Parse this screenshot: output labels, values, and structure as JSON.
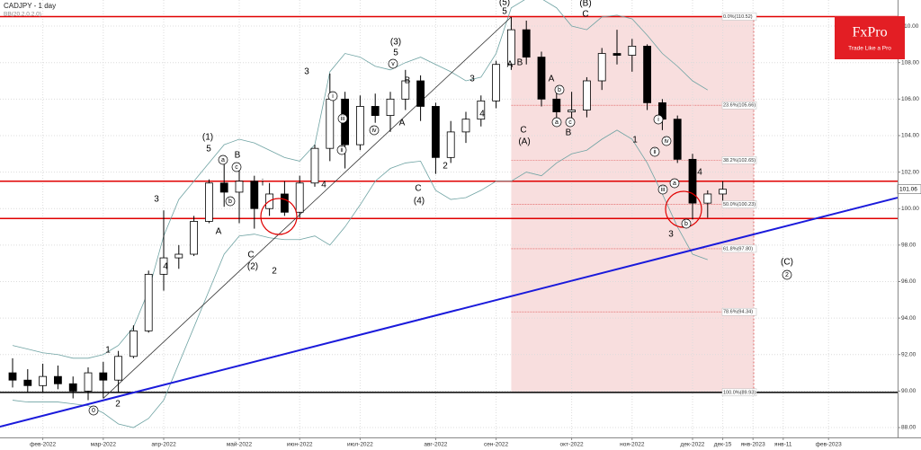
{
  "chart_data": {
    "type": "candlestick",
    "title": "CADJPY - 1 day",
    "indicator_label": "BB(20,2.0,2.0)",
    "brand": {
      "name": "FxPro",
      "tagline": "Trade Like a Pro",
      "color": "#e31e24"
    },
    "categories": [
      null,
      null,
      "фев-2022",
      null,
      null,
      null,
      "мар-2022",
      null,
      null,
      null,
      "апр-2022",
      null,
      null,
      null,
      null,
      "май-2022",
      null,
      null,
      null,
      "июн-2022",
      null,
      null,
      null,
      "июл-2022",
      null,
      null,
      null,
      null,
      "авг-2022",
      null,
      null,
      null,
      "сен-2022",
      null,
      null,
      null,
      null,
      "окт-2022",
      null,
      null,
      null,
      "ноя-2022",
      null,
      null,
      null,
      "дек-2022",
      null,
      "дек-15",
      null,
      "янв-2023",
      null,
      "янв-11",
      null,
      null,
      "фев-2023",
      null
    ],
    "open": [
      91.0,
      90.6,
      90.3,
      90.8,
      90.4,
      90.0,
      91.0,
      90.6,
      91.9,
      93.3,
      96.4,
      97.3,
      97.5,
      99.3,
      101.4,
      100.9,
      101.5,
      100.0,
      100.8,
      99.8,
      101.4,
      103.3,
      106.0,
      103.5,
      105.6,
      105.1,
      106.0,
      107.0,
      105.6,
      102.8,
      104.2,
      104.9,
      105.9,
      107.9,
      109.8,
      108.3,
      106.0,
      105.3,
      105.4,
      107.0,
      108.5,
      108.4,
      108.9,
      105.8,
      104.9,
      102.7,
      100.3,
      100.8,
      null,
      null,
      null,
      null,
      null,
      null,
      null,
      null
    ],
    "high": [
      91.8,
      91.2,
      91.5,
      91.4,
      90.8,
      91.3,
      91.6,
      92.2,
      93.6,
      96.6,
      99.9,
      98.0,
      99.6,
      101.6,
      102.8,
      102.2,
      101.8,
      101.4,
      101.5,
      101.8,
      103.5,
      107.4,
      106.4,
      106.2,
      106.3,
      106.4,
      107.6,
      107.3,
      105.8,
      104.8,
      105.3,
      106.2,
      108.1,
      110.5,
      110.3,
      108.6,
      106.7,
      106.4,
      107.2,
      108.8,
      109.8,
      109.3,
      109.0,
      106.0,
      105.1,
      103.0,
      101.0,
      101.5,
      null,
      null,
      null,
      null,
      null,
      null,
      null,
      null
    ],
    "low": [
      90.2,
      89.9,
      89.9,
      90.1,
      89.6,
      89.5,
      89.6,
      89.9,
      91.8,
      93.2,
      95.5,
      96.7,
      97.4,
      99.2,
      100.1,
      99.2,
      98.9,
      99.6,
      99.6,
      99.5,
      101.2,
      102.6,
      102.2,
      103.2,
      104.7,
      104.2,
      105.4,
      104.8,
      101.9,
      102.5,
      103.6,
      104.5,
      105.5,
      107.6,
      107.9,
      105.6,
      104.6,
      104.9,
      105.0,
      106.5,
      107.9,
      107.5,
      105.4,
      104.3,
      102.5,
      99.4,
      99.5,
      100.4,
      null,
      null,
      null,
      null,
      null,
      null,
      null,
      null
    ],
    "close": [
      90.6,
      90.3,
      90.8,
      90.4,
      90.0,
      91.0,
      90.6,
      91.9,
      93.3,
      96.4,
      97.3,
      97.5,
      99.3,
      101.4,
      100.9,
      101.5,
      100.0,
      100.8,
      99.8,
      101.4,
      103.3,
      106.0,
      103.5,
      105.6,
      105.1,
      106.0,
      107.0,
      105.6,
      102.8,
      104.2,
      104.9,
      105.9,
      107.9,
      109.8,
      108.3,
      106.0,
      105.3,
      105.4,
      107.0,
      108.5,
      108.4,
      108.9,
      105.8,
      104.9,
      102.7,
      100.3,
      100.8,
      101.06,
      null,
      null,
      null,
      null,
      null,
      null,
      null,
      null
    ],
    "up_color": "#ffffff",
    "down_color": "#000000",
    "bands": {
      "color": "#6fa3a3",
      "upper": [
        92.5,
        92.3,
        92.1,
        92.0,
        91.8,
        91.8,
        92.0,
        92.5,
        93.5,
        95.5,
        98.5,
        100.5,
        101.5,
        102.5,
        103.5,
        103.8,
        103.6,
        103.2,
        102.8,
        102.6,
        103.5,
        107.5,
        108.5,
        108.3,
        107.8,
        107.6,
        108.0,
        108.3,
        107.9,
        107.5,
        107.0,
        107.2,
        108.5,
        111.0,
        111.5,
        111.5,
        111.0,
        110.0,
        109.8,
        110.5,
        110.6,
        110.4,
        109.5,
        108.5,
        107.8,
        107.0,
        106.5,
        null,
        null,
        null,
        null,
        null,
        null,
        null,
        null,
        null
      ],
      "lower": [
        89.5,
        89.4,
        89.4,
        89.4,
        89.3,
        89.2,
        88.8,
        88.2,
        88.0,
        88.5,
        89.5,
        91.5,
        93.5,
        95.5,
        97.5,
        98.5,
        98.6,
        98.4,
        98.3,
        98.3,
        98.5,
        98.0,
        99.0,
        100.2,
        101.5,
        102.2,
        102.5,
        102.6,
        101.0,
        100.5,
        100.6,
        101.0,
        101.5,
        101.5,
        102.0,
        101.8,
        102.5,
        103.0,
        103.2,
        103.8,
        104.3,
        103.8,
        102.5,
        100.8,
        99.0,
        97.5,
        97.2,
        null,
        null,
        null,
        null,
        null,
        null,
        null,
        null,
        null
      ]
    },
    "ylim": [
      87.46,
      111.43
    ],
    "yticks": [
      {
        "value": 88,
        "label": "88.00"
      },
      {
        "value": 90,
        "label": "90.00"
      },
      {
        "value": 92,
        "label": "92.00"
      },
      {
        "value": 94,
        "label": "94.00"
      },
      {
        "value": 96,
        "label": "96.00"
      },
      {
        "value": 98,
        "label": "98.00"
      },
      {
        "value": 100,
        "label": "100.00"
      },
      {
        "value": 102,
        "label": "102.00"
      },
      {
        "value": 104,
        "label": "104.00"
      },
      {
        "value": 106,
        "label": "106.00"
      },
      {
        "value": 108,
        "label": "108.00"
      },
      {
        "value": 110,
        "label": "110.00"
      }
    ],
    "grid": true,
    "levels": [
      {
        "value": 110.52,
        "color": "#e00000"
      },
      {
        "value": 101.5,
        "color": "#e00000"
      },
      {
        "value": 99.46,
        "color": "#e00000"
      },
      {
        "value": 89.93,
        "color": "#000000"
      }
    ],
    "fib_levels": [
      {
        "value": 110.52,
        "label": "0.0%(110.52)"
      },
      {
        "value": 105.66,
        "label": "23.6%(105.66)"
      },
      {
        "value": 102.65,
        "label": "38.2%(102.65)"
      },
      {
        "value": 100.23,
        "label": "50.0%(100.23)"
      },
      {
        "value": 97.8,
        "label": "61.8%(97.80)"
      },
      {
        "value": 94.34,
        "label": "78.6%(94.34)"
      },
      {
        "value": 89.93,
        "label": "100.0%(89.93)"
      }
    ],
    "fib_color": "#e06060",
    "fib_fill": "#f8dede",
    "trendline": {
      "y_start": 88.05,
      "y_end": 100.6,
      "color": "#1a1adb"
    },
    "wave_labels": [
      "1",
      "2",
      "0",
      "3",
      "4",
      "(1)",
      "5",
      "a",
      "B",
      "c",
      "b",
      "A",
      "i",
      "C",
      "(2)",
      "2",
      "3",
      "i",
      "iii",
      "ii",
      "iv",
      "v",
      "(3)",
      "5",
      "4",
      "A",
      "B",
      "1",
      "2",
      "3",
      "4",
      "C",
      "(4)",
      "(5)",
      "5",
      "A",
      "B",
      "C",
      "(A)",
      "A",
      "b",
      "a",
      "c",
      "B",
      "(B)",
      "C",
      "2",
      "1",
      "i",
      "ii",
      "iv",
      "iii",
      "a",
      "b",
      "3",
      "4",
      "(C)",
      "2"
    ]
  }
}
